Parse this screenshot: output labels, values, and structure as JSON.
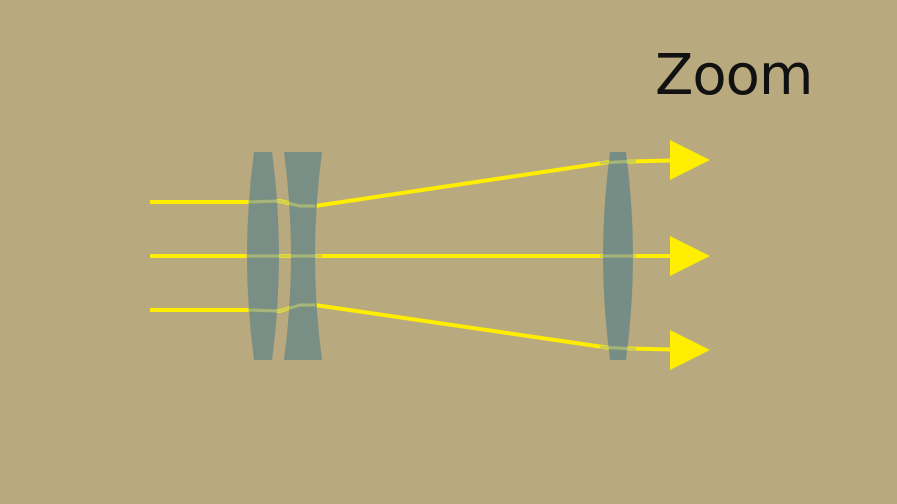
{
  "diagram": {
    "title": "Zoom",
    "colors": {
      "background": "#b9a97e",
      "ray": "#ffee00",
      "lens": "#6f8a86",
      "lens_highlight": "#a9b27a",
      "text": "#111111"
    },
    "elements": {
      "lenses": [
        "converging-lens",
        "diverging-lens",
        "converging-lens"
      ],
      "rays": [
        "top-ray",
        "middle-ray",
        "bottom-ray"
      ]
    }
  }
}
